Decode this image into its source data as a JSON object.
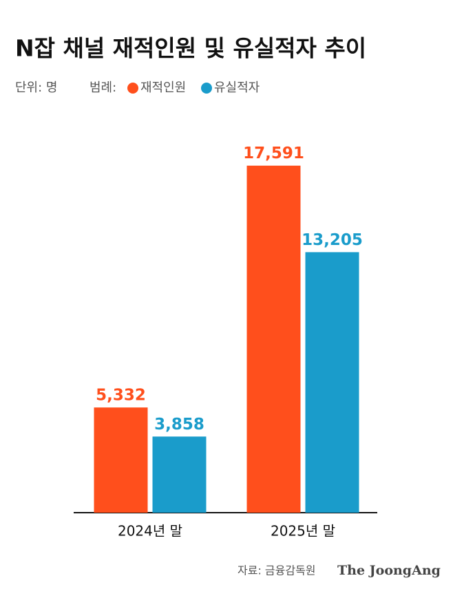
{
  "chart_data": {
    "type": "bar",
    "title": "N잡 채널 재적인원 및 유실적자 추이",
    "unit": "단위: 명",
    "legend_label": "범례:",
    "categories": [
      "2024년 말",
      "2025년 말"
    ],
    "series": [
      {
        "name": "재적인원",
        "color": "#ff4f1c",
        "values": [
          5332,
          17591
        ],
        "value_labels": [
          "5,332",
          "17,591"
        ]
      },
      {
        "name": "유실적자",
        "color": "#1a9ccb",
        "values": [
          3858,
          13205
        ],
        "value_labels": [
          "3,858",
          "13,205"
        ]
      }
    ],
    "ylim": [
      0,
      18000
    ],
    "source": "자료: 금융감독원",
    "brand": "The JoongAng"
  }
}
